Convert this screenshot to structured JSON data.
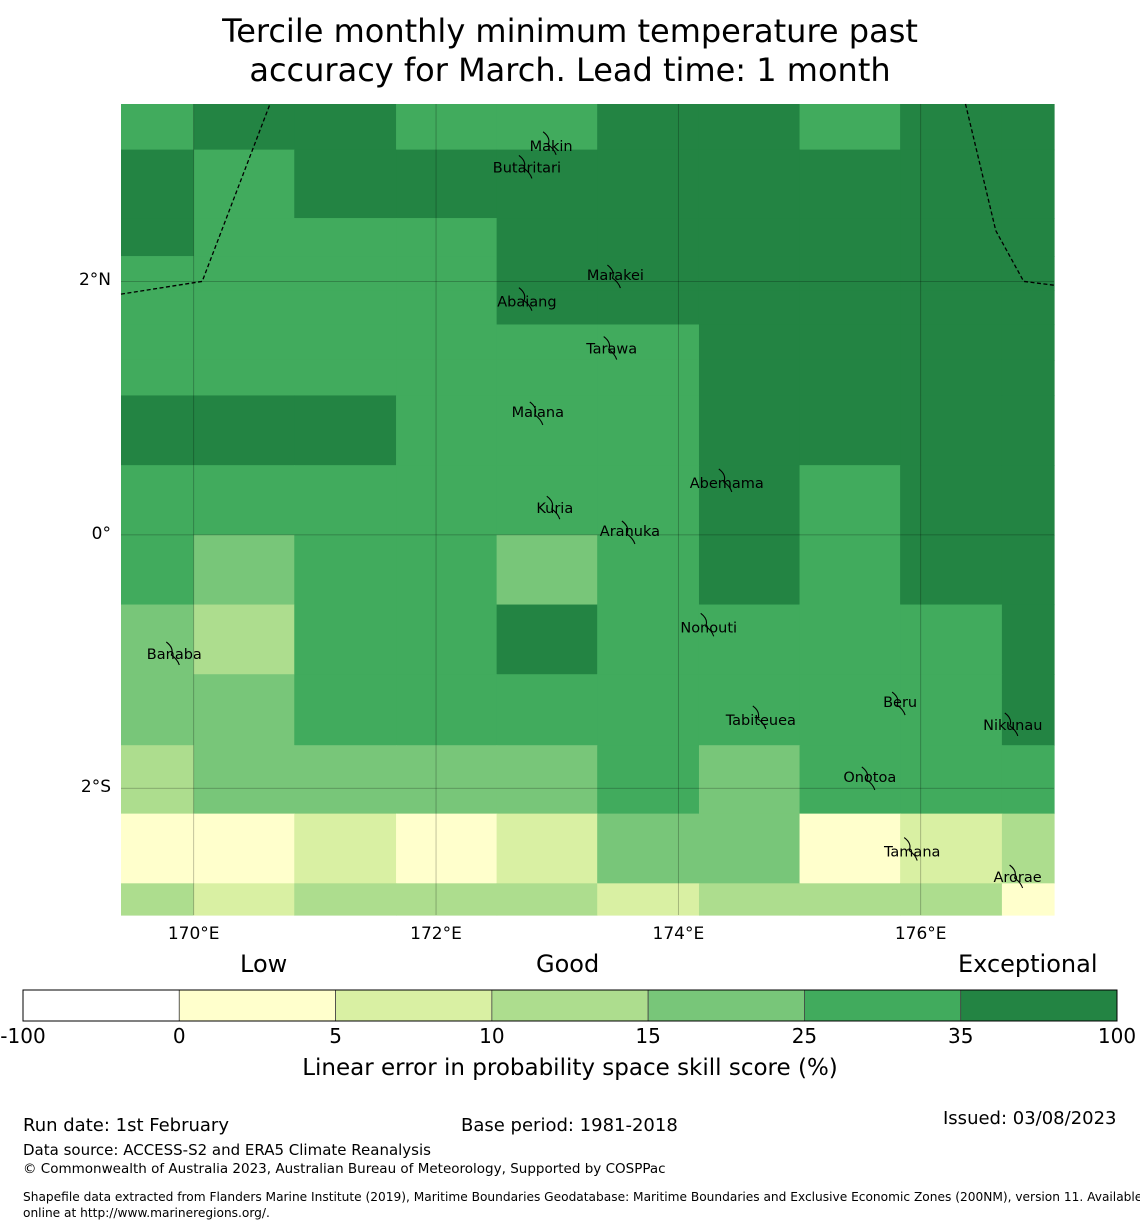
{
  "title": {
    "line1": "Tercile monthly minimum temperature past",
    "line2": "accuracy for March. Lead time: 1 month"
  },
  "map": {
    "lon_range": [
      169.4,
      177.1
    ],
    "lat_range": [
      -3.0,
      3.4
    ],
    "columns_lon": [
      169.4,
      170.0,
      170.83,
      171.67,
      172.5,
      173.33,
      174.17,
      175.0,
      175.83,
      176.67,
      177.1
    ],
    "rows_lat": [
      3.4,
      3.04,
      2.5,
      2.2,
      1.93,
      1.66,
      1.38,
      1.1,
      0.55,
      0.0,
      -0.55,
      -1.1,
      -1.66,
      -2.2,
      -2.75,
      -3.0
    ],
    "grid_categories": [
      [
        5,
        6,
        6,
        5,
        5,
        6,
        6,
        5,
        6,
        6
      ],
      [
        6,
        5,
        6,
        6,
        6,
        6,
        6,
        6,
        6,
        6
      ],
      [
        6,
        5,
        5,
        5,
        6,
        6,
        6,
        6,
        6,
        6
      ],
      [
        5,
        5,
        5,
        5,
        6,
        6,
        6,
        6,
        6,
        6
      ],
      [
        5,
        5,
        5,
        5,
        6,
        6,
        6,
        6,
        6,
        6
      ],
      [
        5,
        5,
        5,
        5,
        5,
        5,
        6,
        6,
        6,
        6
      ],
      [
        5,
        5,
        5,
        5,
        5,
        5,
        6,
        6,
        6,
        6
      ],
      [
        6,
        6,
        6,
        5,
        5,
        5,
        6,
        6,
        6,
        6
      ],
      [
        5,
        5,
        5,
        5,
        5,
        5,
        6,
        5,
        6,
        6
      ],
      [
        5,
        4,
        5,
        5,
        4,
        5,
        6,
        5,
        6,
        6
      ],
      [
        4,
        3,
        5,
        5,
        6,
        5,
        5,
        5,
        5,
        6
      ],
      [
        4,
        4,
        5,
        5,
        5,
        5,
        5,
        5,
        5,
        6
      ],
      [
        3,
        4,
        4,
        4,
        4,
        5,
        4,
        5,
        5,
        5
      ],
      [
        1,
        1,
        2,
        1,
        2,
        4,
        4,
        1,
        2,
        3
      ],
      [
        3,
        2,
        3,
        3,
        3,
        2,
        3,
        3,
        3,
        1
      ]
    ],
    "lon_ticks": [
      {
        "value": 170,
        "label": "170°E"
      },
      {
        "value": 172,
        "label": "172°E"
      },
      {
        "value": 174,
        "label": "174°E"
      },
      {
        "value": 176,
        "label": "176°E"
      }
    ],
    "lat_ticks": [
      {
        "value": 2,
        "label": "2°N"
      },
      {
        "value": 0,
        "label": "0°"
      },
      {
        "value": -2,
        "label": "2°S"
      }
    ],
    "islands": [
      {
        "name": "Makin",
        "lon": 172.95,
        "lat": 3.07
      },
      {
        "name": "Butaritari",
        "lon": 172.75,
        "lat": 2.9
      },
      {
        "name": "Marakei",
        "lon": 173.48,
        "lat": 2.05
      },
      {
        "name": "Abaiang",
        "lon": 172.75,
        "lat": 1.84
      },
      {
        "name": "Tarawa",
        "lon": 173.45,
        "lat": 1.47
      },
      {
        "name": "Maiana",
        "lon": 172.84,
        "lat": 0.97
      },
      {
        "name": "Abemama",
        "lon": 174.4,
        "lat": 0.41
      },
      {
        "name": "Kuria",
        "lon": 172.98,
        "lat": 0.21
      },
      {
        "name": "Aranuka",
        "lon": 173.6,
        "lat": 0.03
      },
      {
        "name": "Nonouti",
        "lon": 174.25,
        "lat": -0.73
      },
      {
        "name": "Banaba",
        "lon": 169.84,
        "lat": -0.94
      },
      {
        "name": "Beru",
        "lon": 175.83,
        "lat": -1.32
      },
      {
        "name": "Tabiteuea",
        "lon": 174.68,
        "lat": -1.46
      },
      {
        "name": "Nikunau",
        "lon": 176.76,
        "lat": -1.5
      },
      {
        "name": "Onotoa",
        "lon": 175.58,
        "lat": -1.91
      },
      {
        "name": "Tamana",
        "lon": 175.93,
        "lat": -2.5
      },
      {
        "name": "Arorae",
        "lon": 176.8,
        "lat": -2.7
      }
    ],
    "eez_boundaries": [
      [
        [
          169.4,
          1.9
        ],
        [
          170.07,
          2.0
        ],
        [
          170.63,
          3.4
        ]
      ],
      [
        [
          176.37,
          3.4
        ],
        [
          176.62,
          2.4
        ],
        [
          176.85,
          2.0
        ],
        [
          177.1,
          1.97
        ]
      ]
    ]
  },
  "colorbar": {
    "category_labels": {
      "low": "Low",
      "good": "Good",
      "exceptional": "Exceptional"
    },
    "bins": [
      {
        "from": -100,
        "to": 0,
        "color": "#ffffff"
      },
      {
        "from": 0,
        "to": 5,
        "color": "#ffffcc"
      },
      {
        "from": 5,
        "to": 10,
        "color": "#d9f0a3"
      },
      {
        "from": 10,
        "to": 15,
        "color": "#addd8e"
      },
      {
        "from": 15,
        "to": 25,
        "color": "#78c679"
      },
      {
        "from": 25,
        "to": 35,
        "color": "#41ab5d"
      },
      {
        "from": 35,
        "to": 100,
        "color": "#238443"
      }
    ],
    "tick_labels": [
      "-100",
      "0",
      "5",
      "10",
      "15",
      "25",
      "35",
      "100"
    ],
    "label": "Linear error in probability space skill score (%)"
  },
  "footer": {
    "run_date": "Run date: 1st February",
    "base_period": "Base period: 1981-2018",
    "issued": "Issued: 03/08/2023",
    "data_source": "Data source: ACCESS-S2 and ERA5 Climate Reanalysis",
    "copyright": "© Commonwealth of Australia 2023, Australian Bureau of Meteorology, Supported by COSPPac",
    "shapefile_line1": "Shapefile data extracted from Flanders Marine Institute (2019), Maritime Boundaries Geodatabase: Maritime Boundaries and Exclusive Economic Zones (200NM), version 11. Available",
    "shapefile_line2": "online at http://www.marineregions.org/."
  }
}
